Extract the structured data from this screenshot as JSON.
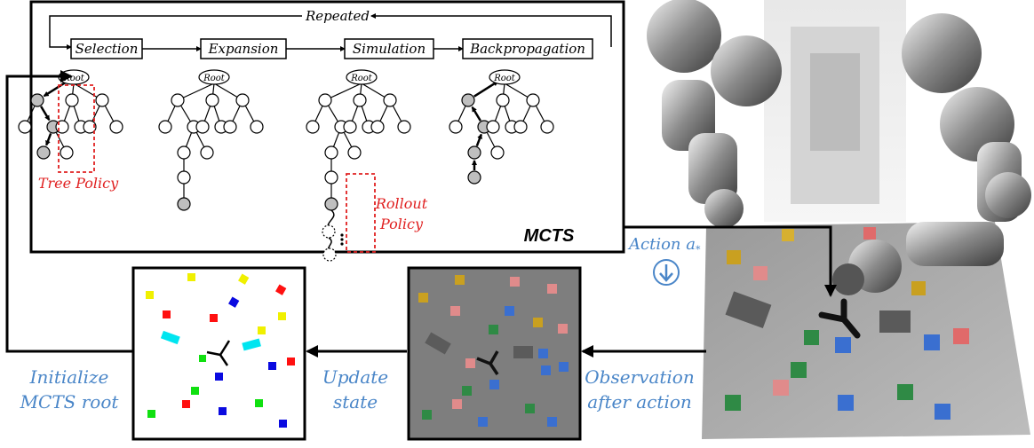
{
  "labels": {
    "repeated": "Repeated",
    "stages": [
      "Selection",
      "Expansion",
      "Simulation",
      "Backpropagation"
    ],
    "root": "Root",
    "tree_policy": "Tree Policy",
    "rollout_policy_l1": "Rollout",
    "rollout_policy_l2": "Policy",
    "mcts": "MCTS",
    "action": "Action a",
    "action_sub": "*",
    "initialize_l1": "Initialize",
    "initialize_l2": "MCTS root",
    "update_l1": "Update",
    "update_l2": "state",
    "observation_l1": "Observation",
    "observation_l2": "after action"
  },
  "colors": {
    "blue_text": "#4a86c8",
    "red_text": "#e02020",
    "node_fill": "#bfbfbf",
    "box_line": "#000000",
    "scene_bg": "#7e7e7e"
  }
}
